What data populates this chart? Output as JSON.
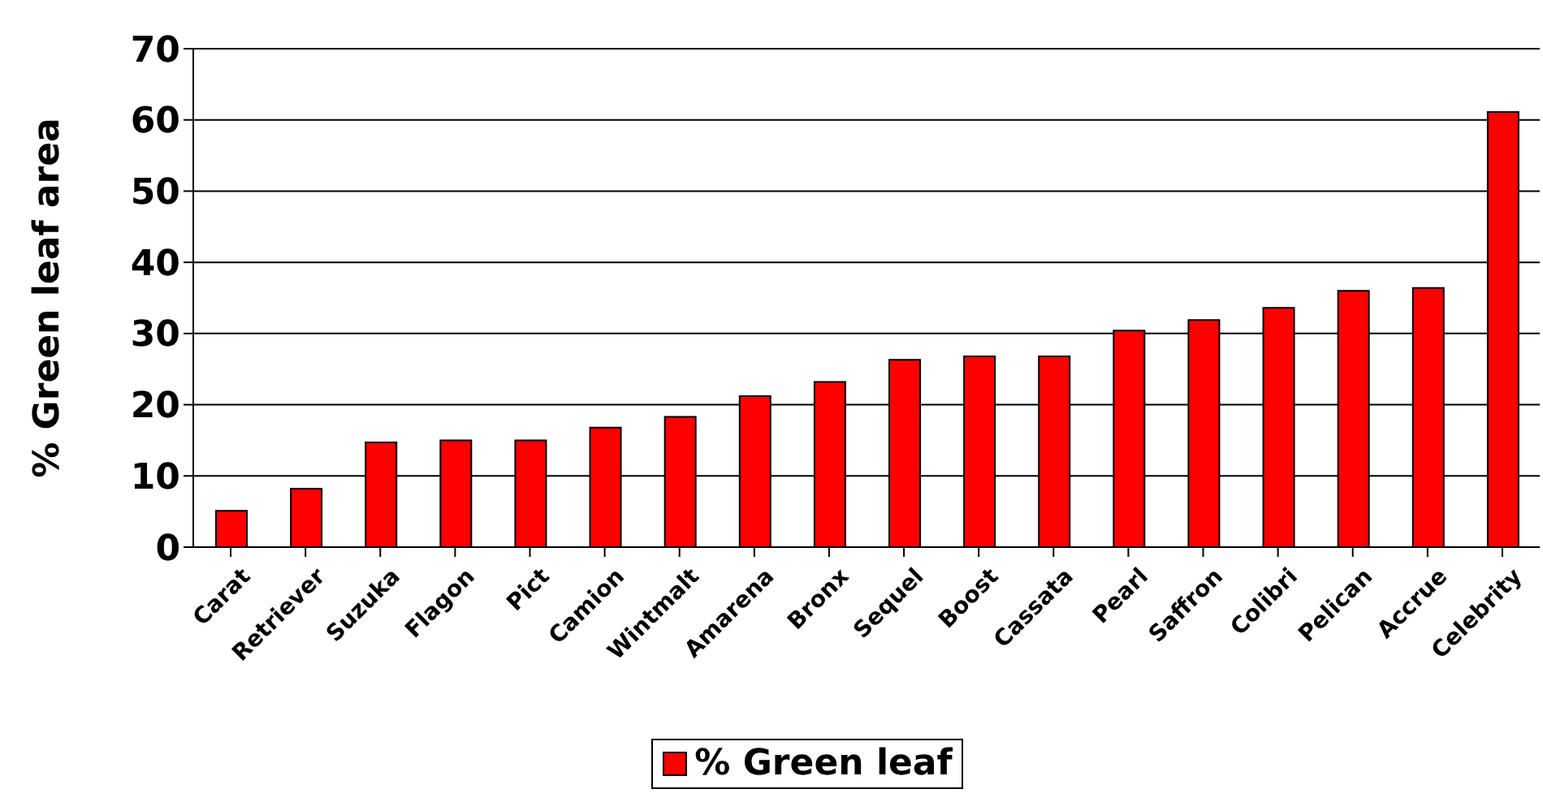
{
  "chart_data": {
    "type": "bar",
    "ylabel": "% Green leaf area",
    "categories": [
      "Carat",
      "Retriever",
      "Suzuka",
      "Flagon",
      "Pict",
      "Camion",
      "Wintmalt",
      "Amarena",
      "Bronx",
      "Sequel",
      "Boost",
      "Cassata",
      "Pearl",
      "Saffron",
      "Colibri",
      "Pelican",
      "Accrue",
      "Celebrity"
    ],
    "series": [
      {
        "name": "% Green leaf",
        "color": "#ff0000",
        "values": [
          5.1,
          8.2,
          14.7,
          15.0,
          15.0,
          16.8,
          18.3,
          21.2,
          23.2,
          26.3,
          26.8,
          26.8,
          30.4,
          31.9,
          33.6,
          36.0,
          36.4,
          61.1
        ]
      }
    ],
    "ylim": [
      0,
      70
    ],
    "yticks": [
      0,
      10,
      20,
      30,
      40,
      50,
      60,
      70
    ],
    "grid": "y",
    "legend": "bottom"
  }
}
